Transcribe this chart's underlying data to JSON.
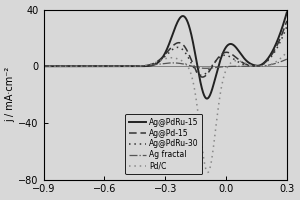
{
  "xlim": [
    -0.9,
    0.3
  ],
  "ylim": [
    -80,
    40
  ],
  "xticks": [
    -0.9,
    -0.6,
    -0.3,
    0.0,
    0.3
  ],
  "yticks": [
    -80,
    -40,
    0,
    40
  ],
  "ylabel": "j / mA·cm⁻²",
  "background_color": "#d8d8d8",
  "axis_fontsize": 7,
  "legend_fontsize": 5.5,
  "curves": [
    {
      "label": "Ag@PdRu-15",
      "linestyle": "solid",
      "color": "#222222",
      "linewidth": 1.4
    },
    {
      "label": "Ag@Pd-15",
      "linestyle": "dashed",
      "color": "#333333",
      "linewidth": 1.1
    },
    {
      "label": "Ag@PdRu-30",
      "linestyle": "dotted",
      "color": "#333333",
      "linewidth": 1.1
    },
    {
      "label": "Ag fractal",
      "linestyle": "dashdot",
      "color": "#555555",
      "linewidth": 0.9
    },
    {
      "label": "Pd/C",
      "linestyle": "dotted",
      "color": "#888888",
      "linewidth": 1.1
    }
  ]
}
